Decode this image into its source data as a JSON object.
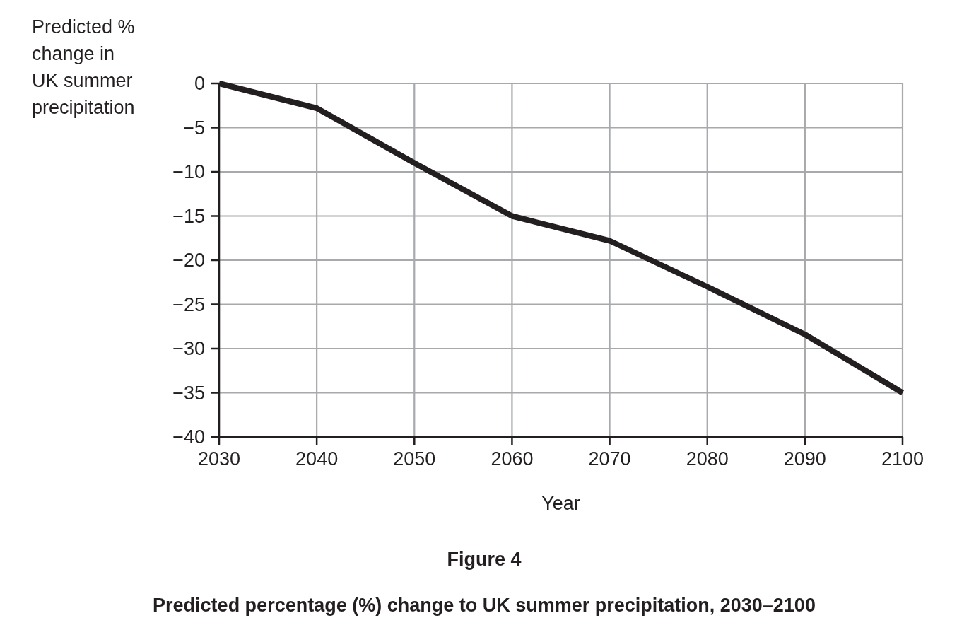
{
  "chart_data": {
    "type": "line",
    "title": "Figure 4",
    "subtitle": "Predicted percentage (%) change to UK summer precipitation, 2030–2100",
    "xlabel": "Year",
    "ylabel": "Predicted % change in UK summer precipitation",
    "x": [
      2030,
      2040,
      2050,
      2060,
      2070,
      2080,
      2090,
      2100
    ],
    "series": [
      {
        "color": "#231f20",
        "values": [
          0,
          -2.8,
          -9,
          -15,
          -17.8,
          -23,
          -28.4,
          -35
        ]
      }
    ],
    "xlim": [
      2030,
      2100
    ],
    "xticks": [
      2030,
      2040,
      2050,
      2060,
      2070,
      2080,
      2090,
      2100
    ],
    "ylim": [
      -40,
      0
    ],
    "yticks": [
      0,
      -5,
      -10,
      -15,
      -20,
      -25,
      -30,
      -35,
      -40
    ],
    "grid": true,
    "line_style": "solid"
  }
}
